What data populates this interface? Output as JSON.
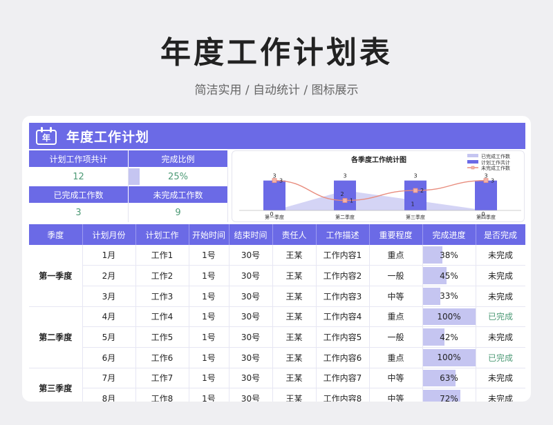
{
  "page": {
    "title": "年度工作计划表",
    "subtitle": "简洁实用 / 自动统计 / 图标展示"
  },
  "header": {
    "title": "年度工作计划",
    "icon": "calendar-icon",
    "icon_glyph": "年"
  },
  "summary": {
    "total_label": "计划工作项共计",
    "total_value": "12",
    "ratio_label": "完成比例",
    "ratio_value": "25%",
    "ratio": 0.25,
    "done_label": "已完成工作数",
    "done_value": "3",
    "undone_label": "未完成工作数",
    "undone_value": "9"
  },
  "chart_data": {
    "type": "bar",
    "title": "各季度工作统计图",
    "categories": [
      "第一季度",
      "第二季度",
      "第三季度",
      "第四季度"
    ],
    "ylim": [
      0,
      3.6
    ],
    "legend_position": "top-right",
    "series": [
      {
        "name": "已完成工作数",
        "type": "area",
        "values": [
          0,
          2,
          1,
          0
        ],
        "color": "#c5c5f1"
      },
      {
        "name": "计划工作共计",
        "type": "bar",
        "values": [
          3,
          3,
          3,
          3
        ],
        "color": "#6b6ae6"
      },
      {
        "name": "未完成工作数",
        "type": "line",
        "values": [
          3,
          1,
          2,
          3
        ],
        "color": "#e88c7d"
      }
    ]
  },
  "table": {
    "columns": [
      "季度",
      "计划月份",
      "计划工作",
      "开始时间",
      "结束时间",
      "责任人",
      "工作描述",
      "重要程度",
      "完成进度",
      "是否完成"
    ],
    "groups": [
      {
        "quarter": "第一季度",
        "rows": [
          {
            "month": "1月",
            "task": "工作1",
            "start": "1号",
            "end": "30号",
            "owner": "王某",
            "desc": "工作内容1",
            "level": "重点",
            "progress": "38%",
            "ratio": 0.38,
            "status": "未完成"
          },
          {
            "month": "2月",
            "task": "工作2",
            "start": "1号",
            "end": "30号",
            "owner": "王某",
            "desc": "工作内容2",
            "level": "一般",
            "progress": "45%",
            "ratio": 0.45,
            "status": "未完成"
          },
          {
            "month": "3月",
            "task": "工作3",
            "start": "1号",
            "end": "30号",
            "owner": "王某",
            "desc": "工作内容3",
            "level": "中等",
            "progress": "33%",
            "ratio": 0.33,
            "status": "未完成"
          }
        ]
      },
      {
        "quarter": "第二季度",
        "rows": [
          {
            "month": "4月",
            "task": "工作4",
            "start": "1号",
            "end": "30号",
            "owner": "王某",
            "desc": "工作内容4",
            "level": "重点",
            "progress": "100%",
            "ratio": 1.0,
            "status": "已完成"
          },
          {
            "month": "5月",
            "task": "工作5",
            "start": "1号",
            "end": "30号",
            "owner": "王某",
            "desc": "工作内容5",
            "level": "一般",
            "progress": "42%",
            "ratio": 0.42,
            "status": "未完成"
          },
          {
            "month": "6月",
            "task": "工作6",
            "start": "1号",
            "end": "30号",
            "owner": "王某",
            "desc": "工作内容6",
            "level": "重点",
            "progress": "100%",
            "ratio": 1.0,
            "status": "已完成"
          }
        ]
      },
      {
        "quarter": "第三季度",
        "rows": [
          {
            "month": "7月",
            "task": "工作7",
            "start": "1号",
            "end": "30号",
            "owner": "王某",
            "desc": "工作内容7",
            "level": "中等",
            "progress": "63%",
            "ratio": 0.63,
            "status": "未完成"
          },
          {
            "month": "8月",
            "task": "工作8",
            "start": "1号",
            "end": "30号",
            "owner": "王某",
            "desc": "工作内容8",
            "level": "中等",
            "progress": "72%",
            "ratio": 0.72,
            "status": "未完成"
          }
        ]
      }
    ]
  }
}
